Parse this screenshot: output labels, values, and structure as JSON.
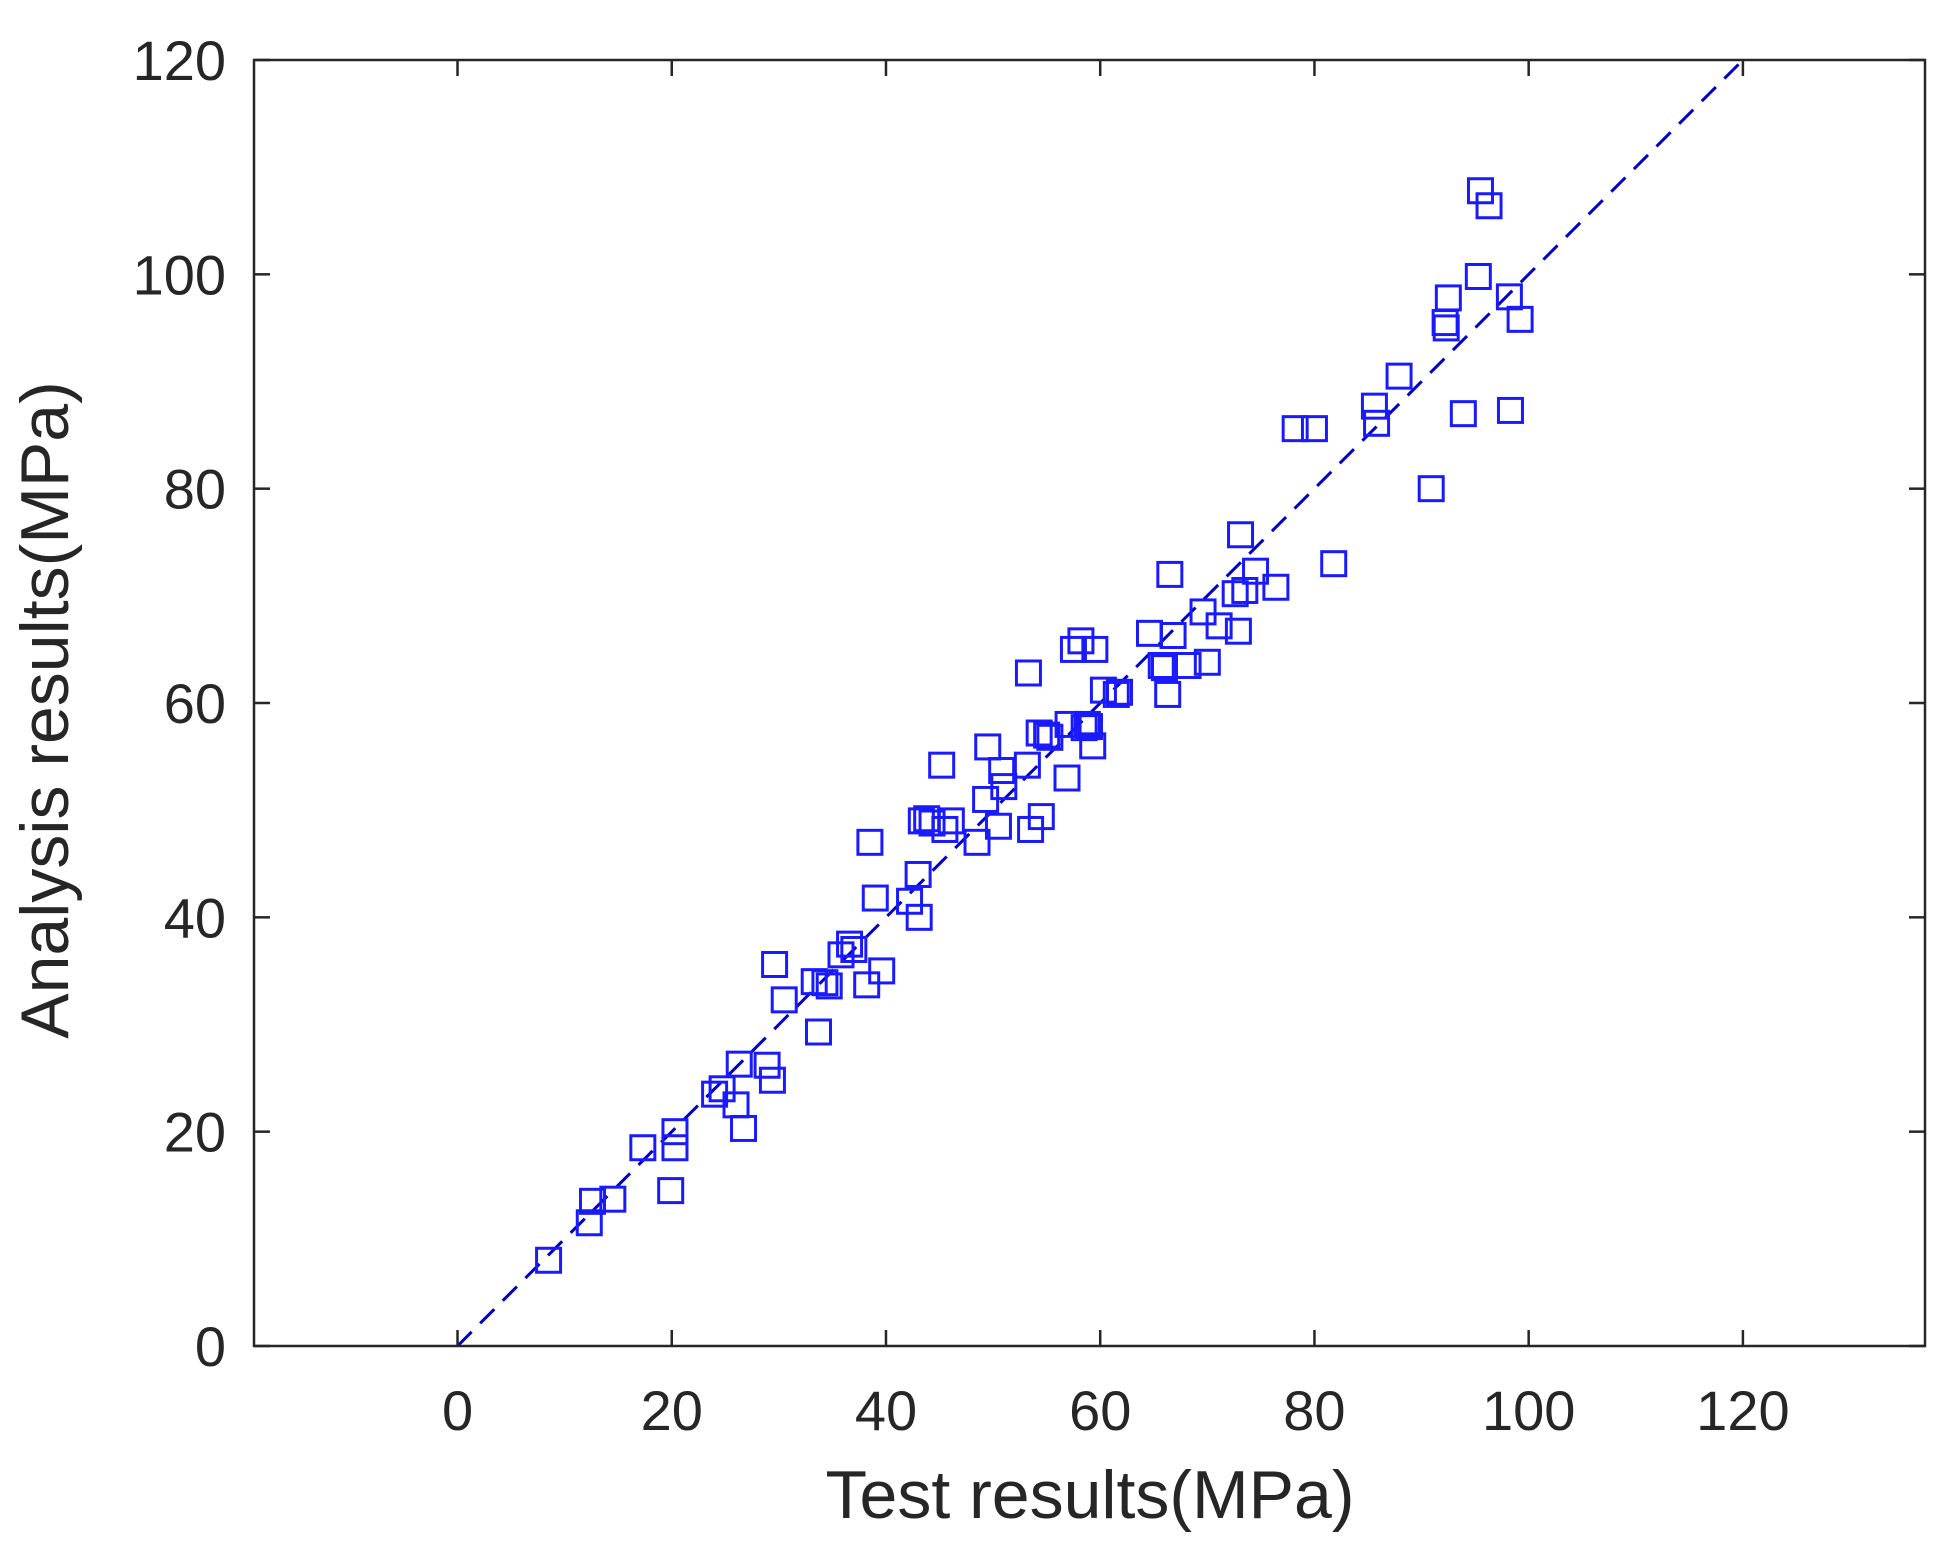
{
  "chart_data": {
    "type": "scatter",
    "xlabel": "Test results(MPa)",
    "ylabel": "Analysis results(MPa)",
    "xlim": [
      -19,
      137
    ],
    "ylim": [
      0,
      120
    ],
    "xticks": [
      0,
      20,
      40,
      60,
      80,
      100,
      120
    ],
    "yticks": [
      0,
      20,
      40,
      60,
      80,
      100,
      120
    ],
    "grid": false,
    "marker": "square",
    "marker_color": "#1a1aff",
    "reference_line": {
      "style": "dashed",
      "color": "#0000cc",
      "x": [
        0,
        120
      ],
      "y": [
        0,
        120
      ]
    },
    "series": [
      {
        "x": [
          8.5,
          12.3,
          12.6,
          14.5,
          17.3,
          19.9,
          20.3,
          20.3,
          24.0,
          24.7,
          26.0,
          26.3,
          26.7,
          28.9,
          29.4,
          29.6,
          30.5,
          33.3,
          33.7,
          34.3,
          34.7,
          35.8,
          36.6,
          37.0,
          38.2,
          38.5,
          39.0,
          39.6,
          42.2,
          43.0,
          43.1,
          43.3,
          43.8,
          44.3,
          45.2,
          45.5,
          46.1,
          48.5,
          49.3,
          49.5,
          50.5,
          50.8,
          51.0,
          53.2,
          53.3,
          53.5,
          54.3,
          54.5,
          55.0,
          55.3,
          56.9,
          57.0,
          57.5,
          58.2,
          58.5,
          58.8,
          59.0,
          59.3,
          59.5,
          60.3,
          61.5,
          61.8,
          64.6,
          65.7,
          66.0,
          66.3,
          66.5,
          66.8,
          68.2,
          69.6,
          70.0,
          71.1,
          72.6,
          72.9,
          73.1,
          73.5,
          74.5,
          76.4,
          78.2,
          80.0,
          81.8,
          85.6,
          85.8,
          87.9,
          90.9,
          92.2,
          92.3,
          92.5,
          93.9,
          95.3,
          95.5,
          96.3,
          98.2,
          98.3,
          99.2
        ],
        "y": [
          8.0,
          11.5,
          13.5,
          13.7,
          18.5,
          14.5,
          20.0,
          18.5,
          23.5,
          24.0,
          22.5,
          26.3,
          20.3,
          26.2,
          24.8,
          35.6,
          32.3,
          34.0,
          29.3,
          33.9,
          33.6,
          36.5,
          37.5,
          37.0,
          33.7,
          47.0,
          41.8,
          35.0,
          41.5,
          44.0,
          40.0,
          49.0,
          49.2,
          48.8,
          54.2,
          48.2,
          49.0,
          47.0,
          51.0,
          55.9,
          48.5,
          53.7,
          52.2,
          54.2,
          62.8,
          48.2,
          57.2,
          49.4,
          57.0,
          56.8,
          53.0,
          58.0,
          65.0,
          65.8,
          57.7,
          58.0,
          57.8,
          56.0,
          65.0,
          61.2,
          60.8,
          61.0,
          66.5,
          63.5,
          63.3,
          60.8,
          72.0,
          66.3,
          63.5,
          68.5,
          63.8,
          67.2,
          70.2,
          66.7,
          75.7,
          70.5,
          72.3,
          70.8,
          85.6,
          85.6,
          73.0,
          87.7,
          86.1,
          90.5,
          80.0,
          95.5,
          95.0,
          97.8,
          87.0,
          99.8,
          107.8,
          106.4,
          97.9,
          87.3,
          95.8
        ]
      }
    ]
  }
}
